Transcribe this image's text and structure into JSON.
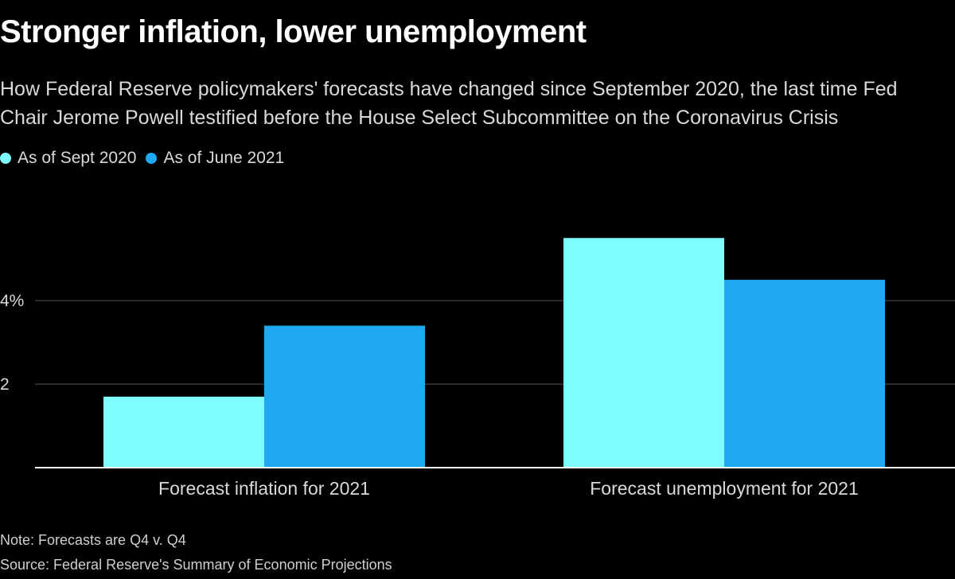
{
  "header": {
    "title": "Stronger inflation, lower unemployment",
    "subtitle": "How Federal Reserve policymakers' forecasts have changed since September 2020, the last time Fed Chair Jerome Powell testified before the House Select Subcommittee on the Coronavirus Crisis"
  },
  "footer": {
    "note": "Note: Forecasts are Q4 v. Q4",
    "source": "Source: Federal Reserve's Summary of Economic Projections"
  },
  "colors": {
    "sept2020": "#7ffcff",
    "june2021": "#1ea9f2",
    "grid": "#555555",
    "axis": "#ffffff"
  },
  "chart_data": {
    "type": "bar",
    "title": "Stronger inflation, lower unemployment",
    "categories": [
      "Forecast inflation for 2021",
      "Forecast unemployment for 2021"
    ],
    "series": [
      {
        "name": "As of Sept 2020",
        "values": [
          1.7,
          5.5
        ]
      },
      {
        "name": "As of June 2021",
        "values": [
          3.4,
          4.5
        ]
      }
    ],
    "ylim": [
      0,
      6
    ],
    "yticks": [
      {
        "value": 2,
        "label": "2"
      },
      {
        "value": 4,
        "label": "4%"
      }
    ],
    "grid": true,
    "legend_position": "top-left"
  }
}
